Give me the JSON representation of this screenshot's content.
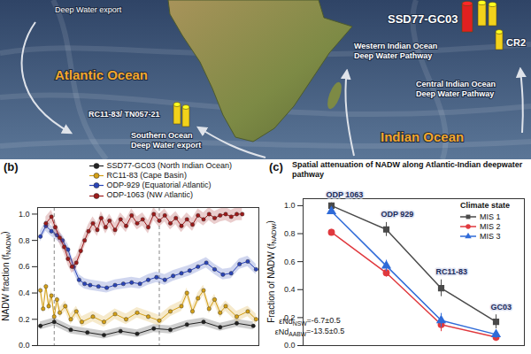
{
  "map": {
    "labels": [
      "Deep Water export",
      "Atlantic Ocean",
      "RC11-83/ TN057-21",
      "Southern Ocean Deep Water export",
      "Western Indian Ocean Deep Water Pathway",
      "SSD77-GC03",
      "CR2",
      "Central Indian Ocean Deep Water Pathway",
      "Indian Ocean"
    ]
  },
  "chart_data": [
    {
      "panel": "(b)",
      "type": "line",
      "marker": "circle",
      "legend": "top",
      "tick_labels": "y",
      "ylabel": [
        "NADW fraction (f",
        "NADW",
        ")"
      ],
      "xlim": [
        0,
        40
      ],
      "ylim": [
        0,
        1.05
      ],
      "yticks": [
        {
          "value": 0,
          "label": "0.0"
        },
        0.2,
        0.4,
        0.6,
        0.8,
        {
          "value": 1,
          "label": "1.0"
        }
      ],
      "vlines": [
        3,
        22
      ],
      "series": [
        {
          "name": "SSD77-GC03 (North Indian Ocean)",
          "color": "#222222",
          "error": 0.03,
          "x": [
            0.5,
            3,
            6,
            9,
            12,
            15,
            18,
            21,
            24,
            27,
            30,
            33,
            36,
            39
          ],
          "values": [
            0.15,
            0.18,
            0.12,
            0.1,
            0.08,
            0.11,
            0.09,
            0.13,
            0.12,
            0.16,
            0.18,
            0.14,
            0.17,
            0.15
          ]
        },
        {
          "name": "RC11-83 (Cape Basin)",
          "color": "#d4a017",
          "error": 0.04,
          "x": [
            0.5,
            1,
            1.5,
            2,
            2.5,
            3,
            3.5,
            4,
            5,
            6,
            7,
            8,
            10,
            12,
            14,
            16,
            18,
            20,
            22,
            24,
            26,
            27,
            28,
            29,
            30,
            31,
            32,
            33,
            34,
            36,
            38,
            39.5
          ],
          "values": [
            0.42,
            0.28,
            0.45,
            0.3,
            0.38,
            0.22,
            0.35,
            0.25,
            0.3,
            0.2,
            0.26,
            0.18,
            0.22,
            0.18,
            0.24,
            0.2,
            0.25,
            0.22,
            0.19,
            0.26,
            0.3,
            0.4,
            0.26,
            0.36,
            0.42,
            0.28,
            0.35,
            0.25,
            0.3,
            0.22,
            0.26,
            0.2
          ]
        },
        {
          "name": "ODP-929 (Equatorial Atlantic)",
          "color": "#2b45b8",
          "error": 0.04,
          "x": [
            0.5,
            1.5,
            2.5,
            3.5,
            4.5,
            5.5,
            6.5,
            7.5,
            8.5,
            9.5,
            11,
            12.5,
            14,
            15.5,
            17,
            18.5,
            20,
            21.5,
            23,
            24.5,
            26,
            27.5,
            29,
            30.5,
            32,
            33.5,
            35,
            36.5,
            38,
            39.5
          ],
          "values": [
            0.83,
            0.91,
            0.87,
            0.84,
            0.8,
            0.73,
            0.6,
            0.5,
            0.47,
            0.46,
            0.45,
            0.44,
            0.46,
            0.47,
            0.48,
            0.47,
            0.5,
            0.52,
            0.5,
            0.53,
            0.55,
            0.57,
            0.6,
            0.63,
            0.58,
            0.54,
            0.55,
            0.62,
            0.64,
            0.58
          ]
        },
        {
          "name": "ODP-1063 (NW Atlantic)",
          "color": "#9e1b1b",
          "error": 0.05,
          "x": [
            1.5,
            2.5,
            3.2,
            4,
            4.8,
            5.5,
            6.2,
            7,
            7.8,
            8.5,
            9.2,
            10,
            10.8,
            11.5,
            12.3,
            13,
            14,
            15,
            16,
            17,
            18,
            19,
            20,
            21,
            22,
            23,
            24,
            25,
            26,
            27,
            28,
            29,
            30,
            31,
            32,
            33,
            34,
            35,
            36,
            37
          ],
          "values": [
            0.93,
            0.98,
            0.9,
            0.82,
            0.75,
            0.66,
            0.6,
            0.63,
            0.72,
            0.8,
            0.87,
            0.93,
            0.88,
            0.97,
            0.9,
            0.95,
            0.88,
            0.96,
            0.91,
            0.99,
            0.93,
            0.96,
            0.9,
            1.0,
            0.95,
            0.99,
            0.93,
            0.97,
            0.91,
            0.96,
            0.92,
            0.99,
            0.96,
            1.0,
            0.97,
            0.99,
            1.0,
            0.98,
            1.0,
            1.0
          ]
        }
      ]
    },
    {
      "panel": "(c)",
      "type": "line",
      "title": "Spatial attenuation of NADW along Atlantic-Indian deepwater pathway",
      "legend": "top-right",
      "legend_title": "Climate state",
      "tick_labels": "y",
      "ylabel": [
        "Fraction of NADW (f",
        "NADW",
        ")"
      ],
      "categories": [
        "ODP 1063",
        "ODP 929",
        "RC11-83",
        "GC03"
      ],
      "ylim": [
        0,
        1.05
      ],
      "yticks": [
        {
          "value": 0,
          "label": "0.0"
        },
        0.2,
        0.4,
        0.6,
        0.8,
        {
          "value": 1,
          "label": "1.0"
        }
      ],
      "annotations": [
        [
          "εNd",
          "NSW",
          "=-6.7±0.5"
        ],
        [
          "εNd",
          "AABW",
          "=-13.5±0.5"
        ]
      ],
      "series": [
        {
          "name": "MIS 1",
          "color": "#4a4a4a",
          "marker": "square",
          "values": [
            1.0,
            0.83,
            0.41,
            0.17
          ],
          "errors": [
            0.02,
            0.05,
            0.06,
            0.05
          ]
        },
        {
          "name": "MIS 2",
          "color": "#e0393e",
          "marker": "circle",
          "values": [
            0.81,
            0.52,
            0.15,
            0.06
          ],
          "errors": [
            0.02,
            0.03,
            0.05,
            0.03
          ]
        },
        {
          "name": "MIS 3",
          "color": "#2f6bd8",
          "marker": "triangle",
          "values": [
            0.96,
            0.57,
            0.18,
            0.08
          ],
          "errors": [
            0.02,
            0.04,
            0.05,
            0.03
          ]
        }
      ]
    }
  ]
}
